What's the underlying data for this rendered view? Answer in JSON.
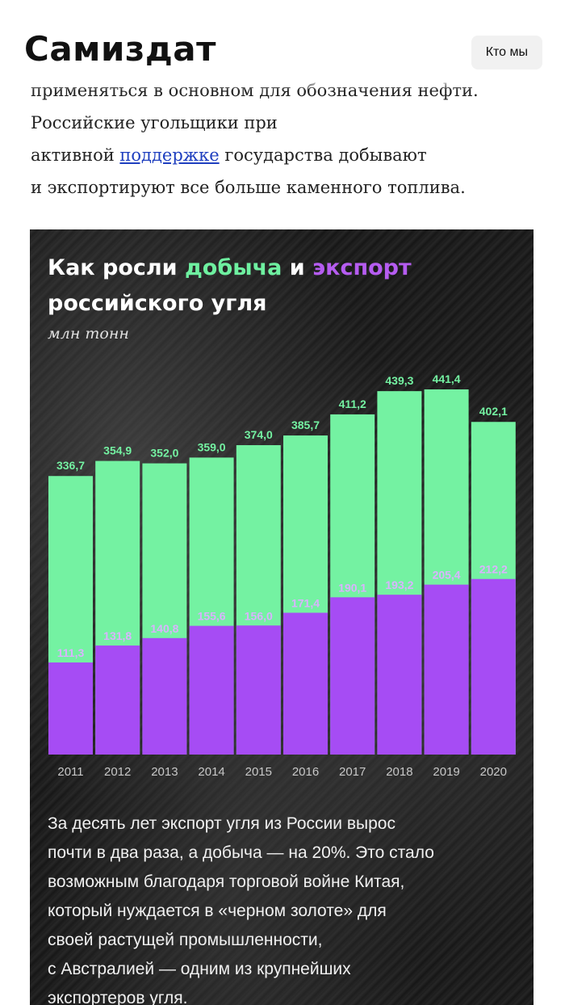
{
  "header": {
    "logo": "Самиздат",
    "about_button": "Кто мы"
  },
  "article": {
    "line0": "применяться в основном для обозначения нефти.",
    "line1": "Российские угольщики при",
    "line2_before": "активной ",
    "line2_link": "поддержке",
    "line2_after": " государства добывают",
    "line3": "и экспортируют все больше каменного топлива."
  },
  "infographic": {
    "title_part1": "Как росли ",
    "title_green": "добыча",
    "title_part2": " и ",
    "title_purple": "экспорт",
    "title_line2": "российского угля",
    "unit": "млн тонн",
    "caption_lines": [
      "За десять лет экспорт угля из России вырос",
      "почти в два раза, а добыча — на 20%. Это стало",
      "возможным благодаря торговой войне Китая,",
      "который нуждается в «черном золоте» для",
      "своей растущей промышленности,",
      "с Австралией — одним из крупнейших",
      "экспортеров угля."
    ]
  },
  "colors": {
    "production": "#74f2a2",
    "export": "#a64cf4",
    "production_label": "#74f2a2",
    "export_label": "#d9b3ff",
    "year_label": "#c8c8c8"
  },
  "chart_data": {
    "type": "bar",
    "categories": [
      "2011",
      "2012",
      "2013",
      "2014",
      "2015",
      "2016",
      "2017",
      "2018",
      "2019",
      "2020"
    ],
    "series": [
      {
        "name": "добыча",
        "values": [
          336.7,
          354.9,
          352.0,
          359.0,
          374.0,
          385.7,
          411.2,
          439.3,
          441.4,
          402.1
        ]
      },
      {
        "name": "экспорт",
        "values": [
          111.3,
          131.8,
          140.8,
          155.6,
          156.0,
          171.4,
          190.1,
          193.2,
          205.4,
          212.2
        ]
      }
    ],
    "labels": {
      "production": [
        "336,7",
        "354,9",
        "352,0",
        "359,0",
        "374,0",
        "385,7",
        "411,2",
        "439,3",
        "441,4",
        "402,1"
      ],
      "export": [
        "111,3",
        "131,8",
        "140,8",
        "155,6",
        "156,0",
        "171,4",
        "190,1",
        "193,2",
        "205,4",
        "212,2"
      ]
    },
    "title": "Как росли добыча и экспорт российского угля",
    "ylabel": "млн тонн",
    "ylim": [
      0,
      441.4
    ],
    "grid": false,
    "overlay": true
  }
}
